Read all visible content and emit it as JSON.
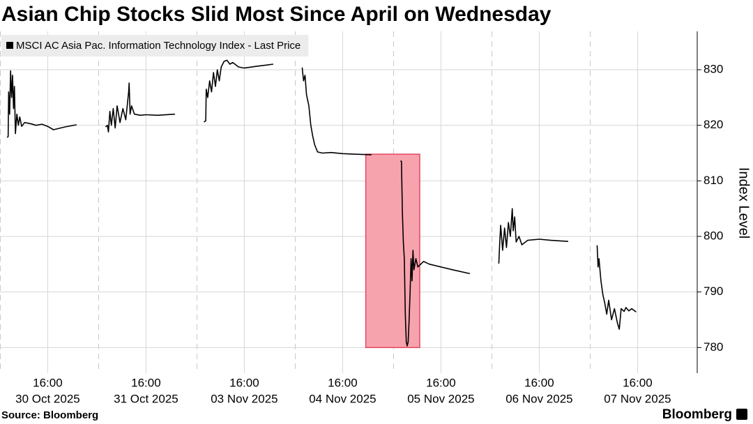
{
  "chart_data": {
    "type": "line",
    "title": "Asian Chip Stocks Slid Most Since April on Wednesday",
    "y_label": "Index Level",
    "source": "Source: Bloomberg",
    "brand": "Bloomberg",
    "ylim": [
      775.4,
      836.9
    ],
    "yticks": [
      780,
      790,
      800,
      810,
      820,
      830
    ],
    "grid": true,
    "legend": "top-left",
    "xticks": [
      {
        "value": "2025-10-30 16:00",
        "label": [
          "16:00",
          "30 Oct 2025"
        ]
      },
      {
        "value": "2025-10-31 16:00",
        "label": [
          "16:00",
          "31 Oct 2025"
        ]
      },
      {
        "value": "2025-11-03 16:00",
        "label": [
          "16:00",
          "03 Nov 2025"
        ]
      },
      {
        "value": "2025-11-04 16:00",
        "label": [
          "16:00",
          "04 Nov 2025"
        ]
      },
      {
        "value": "2025-11-05 16:00",
        "label": [
          "16:00",
          "05 Nov 2025"
        ]
      },
      {
        "value": "2025-11-06 16:00",
        "label": [
          "16:00",
          "06 Nov 2025"
        ]
      },
      {
        "value": "2025-11-07 16:00",
        "label": [
          "16:00",
          "07 Nov 2025"
        ]
      }
    ],
    "highlight": {
      "x": [
        "2025-11-04 20:00",
        "2025-11-05 12:20"
      ],
      "y": [
        780,
        814.8
      ],
      "color": "#f7a3ae",
      "edge": "#e4485c"
    },
    "series": [
      {
        "name": "MSCI AC Asia Pac. Information Technology Index - Last Price",
        "color": "#000000",
        "x": [
          "2025-10-30 09:00",
          "2025-10-30 09:10",
          "2025-10-30 09:15",
          "2025-10-30 09:25",
          "2025-10-30 09:35",
          "2025-10-30 09:45",
          "2025-10-30 09:55",
          "2025-10-30 10:05",
          "2025-10-30 10:15",
          "2025-10-30 10:25",
          "2025-10-30 10:40",
          "2025-10-30 10:55",
          "2025-10-30 11:10",
          "2025-10-30 11:30",
          "2025-10-30 12:00",
          "2025-10-30 13:00",
          "2025-10-30 14:00",
          "2025-10-30 15:00",
          "2025-10-30 16:00",
          "2025-10-30 17:00",
          "2025-10-30 19:00",
          "2025-10-30 21:00",
          null,
          "2025-10-31 09:00",
          "2025-10-31 09:20",
          "2025-10-31 09:30",
          "2025-10-31 09:45",
          "2025-10-31 10:00",
          "2025-10-31 10:20",
          "2025-10-31 10:40",
          "2025-10-31 11:00",
          "2025-10-31 11:30",
          "2025-10-31 12:00",
          "2025-10-31 12:30",
          "2025-10-31 13:00",
          "2025-10-31 13:05",
          "2025-10-31 13:15",
          "2025-10-31 13:30",
          "2025-10-31 14:00",
          "2025-10-31 15:00",
          "2025-10-31 16:00",
          "2025-10-31 18:00",
          "2025-10-31 21:00",
          null,
          "2025-11-03 09:00",
          "2025-11-03 09:20",
          "2025-11-03 09:25",
          "2025-11-03 09:40",
          "2025-11-03 10:00",
          "2025-11-03 10:20",
          "2025-11-03 10:40",
          "2025-11-03 11:00",
          "2025-11-03 11:20",
          "2025-11-03 11:40",
          "2025-11-03 12:00",
          "2025-11-03 12:30",
          "2025-11-03 13:00",
          "2025-11-03 13:30",
          "2025-11-03 14:00",
          "2025-11-03 15:00",
          "2025-11-03 16:00",
          "2025-11-03 18:00",
          "2025-11-03 21:00",
          null,
          "2025-11-04 09:00",
          "2025-11-04 09:15",
          "2025-11-04 09:30",
          "2025-11-04 09:45",
          "2025-11-04 10:10",
          "2025-11-04 10:30",
          "2025-11-04 10:50",
          "2025-11-04 11:10",
          "2025-11-04 11:40",
          "2025-11-04 12:30",
          "2025-11-04 14:00",
          "2025-11-04 16:00",
          "2025-11-04 18:00",
          "2025-11-04 21:00",
          null,
          "2025-11-05 09:00",
          "2025-11-05 09:10",
          "2025-11-05 09:20",
          "2025-11-05 09:30",
          "2025-11-05 09:40",
          "2025-11-05 09:50",
          "2025-11-05 10:00",
          "2025-11-05 10:10",
          "2025-11-05 10:20",
          "2025-11-05 10:30",
          "2025-11-05 10:40",
          "2025-11-05 10:50",
          "2025-11-05 11:00",
          "2025-11-05 11:10",
          "2025-11-05 11:20",
          "2025-11-05 11:40",
          "2025-11-05 12:00",
          "2025-11-05 13:00",
          "2025-11-05 14:00",
          "2025-11-05 16:00",
          "2025-11-05 18:00",
          "2025-11-05 21:00",
          null,
          "2025-11-06 09:00",
          "2025-11-06 09:10",
          "2025-11-06 09:20",
          "2025-11-06 09:40",
          "2025-11-06 10:00",
          "2025-11-06 10:20",
          "2025-11-06 10:40",
          "2025-11-06 11:00",
          "2025-11-06 11:20",
          "2025-11-06 11:30",
          "2025-11-06 11:45",
          "2025-11-06 12:00",
          "2025-11-06 12:30",
          "2025-11-06 13:00",
          "2025-11-06 14:00",
          "2025-11-06 16:00",
          "2025-11-06 18:00",
          "2025-11-06 21:00",
          null,
          "2025-11-07 09:00",
          "2025-11-07 09:10",
          "2025-11-07 09:20",
          "2025-11-07 09:40",
          "2025-11-07 10:00",
          "2025-11-07 10:20",
          "2025-11-07 10:40",
          "2025-11-07 11:00",
          "2025-11-07 11:30",
          "2025-11-07 12:00",
          "2025-11-07 12:30",
          "2025-11-07 12:50",
          "2025-11-07 13:10",
          "2025-11-07 13:40",
          "2025-11-07 14:00",
          "2025-11-07 14:30",
          "2025-11-07 15:00",
          "2025-11-07 15:45"
        ],
        "values": [
          817.8,
          818,
          826,
          822,
          829.8,
          825,
          829,
          823,
          827,
          818.5,
          822,
          820,
          821.5,
          819.8,
          820.5,
          820.3,
          820,
          820.2,
          819.8,
          819.2,
          819.7,
          820.1,
          null,
          819.7,
          820,
          818.8,
          822.5,
          820,
          823,
          819.5,
          823.5,
          820.5,
          823,
          821,
          826,
          827.6,
          822,
          823.5,
          822,
          821.8,
          821.9,
          821.8,
          822,
          null,
          820.6,
          820.8,
          826.5,
          825,
          828,
          826,
          829.5,
          827,
          830,
          828,
          830.5,
          831.5,
          831.7,
          831,
          831.3,
          830.5,
          830.3,
          830.6,
          831,
          null,
          830.4,
          828,
          829,
          825.5,
          823.5,
          820,
          818,
          816.5,
          815.2,
          815,
          815.1,
          814.9,
          814.8,
          814.7,
          null,
          813.6,
          813.5,
          804.5,
          799,
          796,
          786,
          781,
          780.3,
          781,
          785,
          790,
          796,
          792,
          797.5,
          794,
          796,
          794.5,
          795.5,
          795,
          794.5,
          794,
          793.3,
          null,
          795.1,
          799,
          802,
          797.5,
          801.5,
          798,
          802.5,
          800,
          805,
          801,
          803.5,
          799,
          800,
          798.5,
          799.3,
          799.5,
          799.3,
          799.1,
          null,
          798.4,
          794.5,
          796,
          792,
          789.5,
          788,
          786,
          788.5,
          785,
          787,
          784.5,
          783.3,
          787,
          786.5,
          787.2,
          786.6,
          787,
          786.4
        ]
      }
    ]
  }
}
